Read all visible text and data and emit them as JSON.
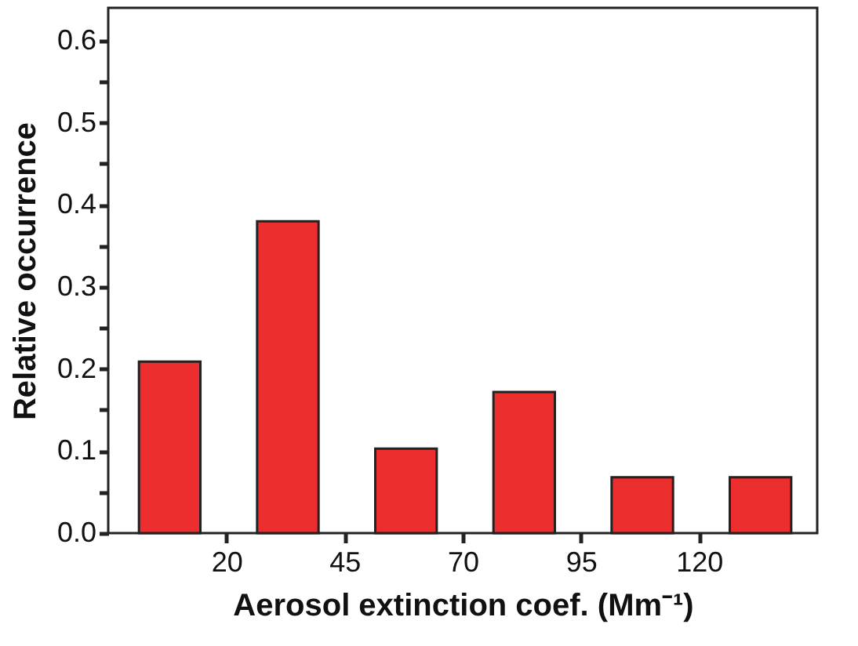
{
  "chart_data": {
    "type": "bar",
    "xlabel": "Aerosol extinction coef.  (Mm⁻¹)",
    "ylabel": "Relative occurrence",
    "x": [
      8,
      33,
      58,
      83,
      108,
      133
    ],
    "values": [
      0.209,
      0.38,
      0.103,
      0.172,
      0.068,
      0.068
    ],
    "color": "#ec2e2e",
    "xlim": [
      -5,
      145
    ],
    "xticks": [
      20,
      45,
      70,
      95,
      120
    ],
    "ylim": [
      0,
      0.64
    ],
    "yticks": [
      {
        "value": 0,
        "label": "0.0"
      },
      {
        "value": 0.05,
        "label": null
      },
      0.1,
      {
        "value": 0.15,
        "label": null
      },
      0.2,
      {
        "value": 0.25,
        "label": null
      },
      0.3,
      {
        "value": 0.35,
        "label": null
      },
      0.4,
      {
        "value": 0.45,
        "label": null
      },
      0.5,
      {
        "value": 0.55,
        "label": null
      },
      0.6
    ],
    "grid": false
  }
}
